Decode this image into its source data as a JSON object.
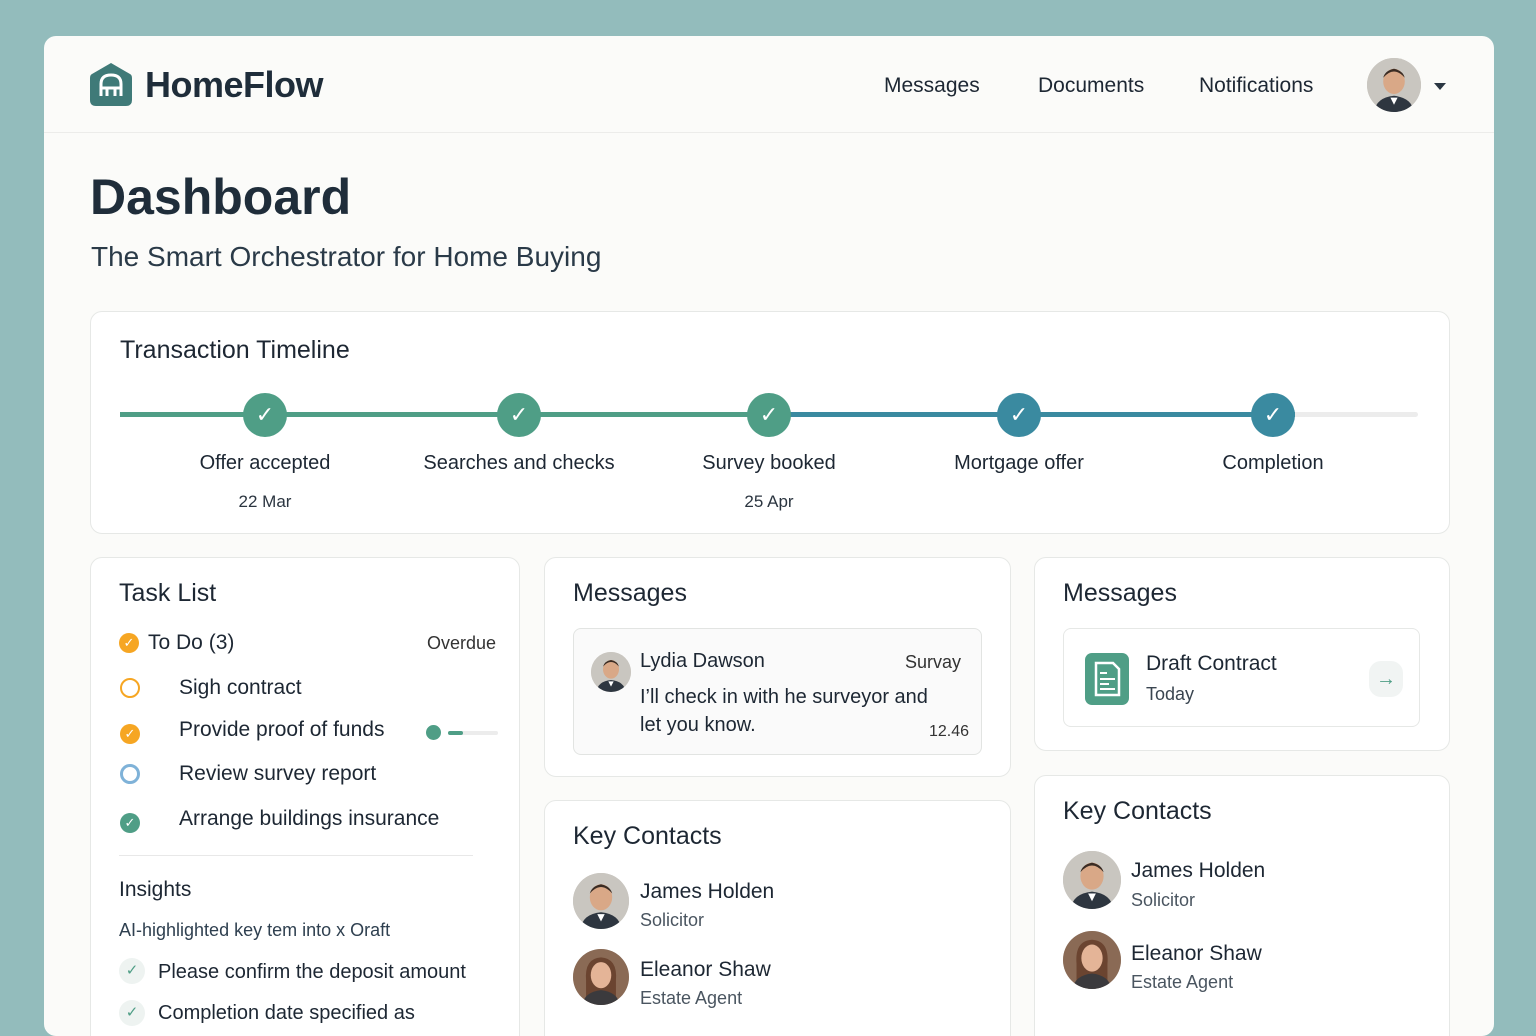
{
  "app": {
    "name": "HomeFlow",
    "nav": [
      "Messages",
      "Documents",
      "Notifications"
    ]
  },
  "page": {
    "title": "Dashboard",
    "subtitle": "The Smart Orchestrator for Home Buying"
  },
  "timeline": {
    "title": "Transaction Timeline",
    "steps": [
      {
        "label": "Offer accepted",
        "date": "22 Mar",
        "status": "done",
        "color": "#4f9e86"
      },
      {
        "label": "Searches and checks",
        "date": "",
        "status": "done",
        "color": "#4f9e86"
      },
      {
        "label": "Survey booked",
        "date": "25 Apr",
        "status": "done",
        "color": "#4f9e86"
      },
      {
        "label": "Mortgage offer",
        "date": "",
        "status": "done",
        "color": "#3a8aa0"
      },
      {
        "label": "Completion",
        "date": "",
        "status": "done",
        "color": "#3a8aa0"
      }
    ]
  },
  "tasks": {
    "title": "Task List",
    "group": "To Do",
    "count": "(3)",
    "overdue": "Overdue",
    "items": [
      {
        "label": "Sigh contract",
        "state": "pending"
      },
      {
        "label": "Provide proof of funds",
        "state": "in-progress",
        "progress": 0.3
      },
      {
        "label": "Review survey report",
        "state": "review"
      },
      {
        "label": "Arrange buildings insurance",
        "state": "done"
      }
    ],
    "insights": {
      "title": "Insights",
      "subtitle": "AI-highlighted key tem into x Oraft",
      "items": [
        "Please confirm the deposit amount",
        "Completion date specified as"
      ]
    }
  },
  "messages": {
    "title": "Messages",
    "sender": "Lydia Dawson",
    "tag": "Survay",
    "body": "I’ll check in with he surveyor and let you know.",
    "time": "12.46"
  },
  "documents": {
    "title": "Messages",
    "doc": "Draft Contract",
    "when": "Today"
  },
  "contacts": {
    "title": "Key Contacts",
    "people": [
      {
        "name": "James Holden",
        "role": "Solicitor"
      },
      {
        "name": "Eleanor Shaw",
        "role": "Estate Agent"
      }
    ]
  },
  "colors": {
    "accent": "#4f9e86",
    "accent2": "#3a8aa0",
    "warning": "#f6a623",
    "brand": "#3f7a78"
  }
}
